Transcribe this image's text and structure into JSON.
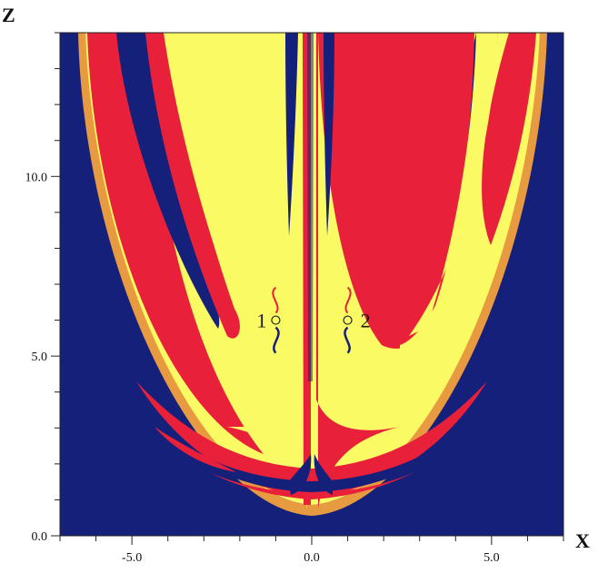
{
  "colors": {
    "basin_blue": "#14207a",
    "basin_red": "#e8203a",
    "basin_yellow": "#fafa64",
    "boundary": "#e8a040"
  },
  "axes": {
    "x_title": "X",
    "z_title": "Z",
    "x_range": [
      -7.0,
      7.0
    ],
    "z_range": [
      0.0,
      14.0
    ],
    "x_ticks": [
      {
        "value": -5.0,
        "label": "-5.0"
      },
      {
        "value": 0.0,
        "label": "0.0"
      },
      {
        "value": 5.0,
        "label": "5.0"
      }
    ],
    "z_ticks": [
      {
        "value": 0.0,
        "label": "0.0"
      },
      {
        "value": 5.0,
        "label": "5.0"
      },
      {
        "value": 10.0,
        "label": "10.0"
      }
    ],
    "x_minor_step": 1.0,
    "z_minor_step": 1.0
  },
  "equilibria": [
    {
      "label": "1",
      "x": -1.0,
      "z": 6.0
    },
    {
      "label": "2",
      "x": 1.0,
      "z": 6.0
    }
  ]
}
